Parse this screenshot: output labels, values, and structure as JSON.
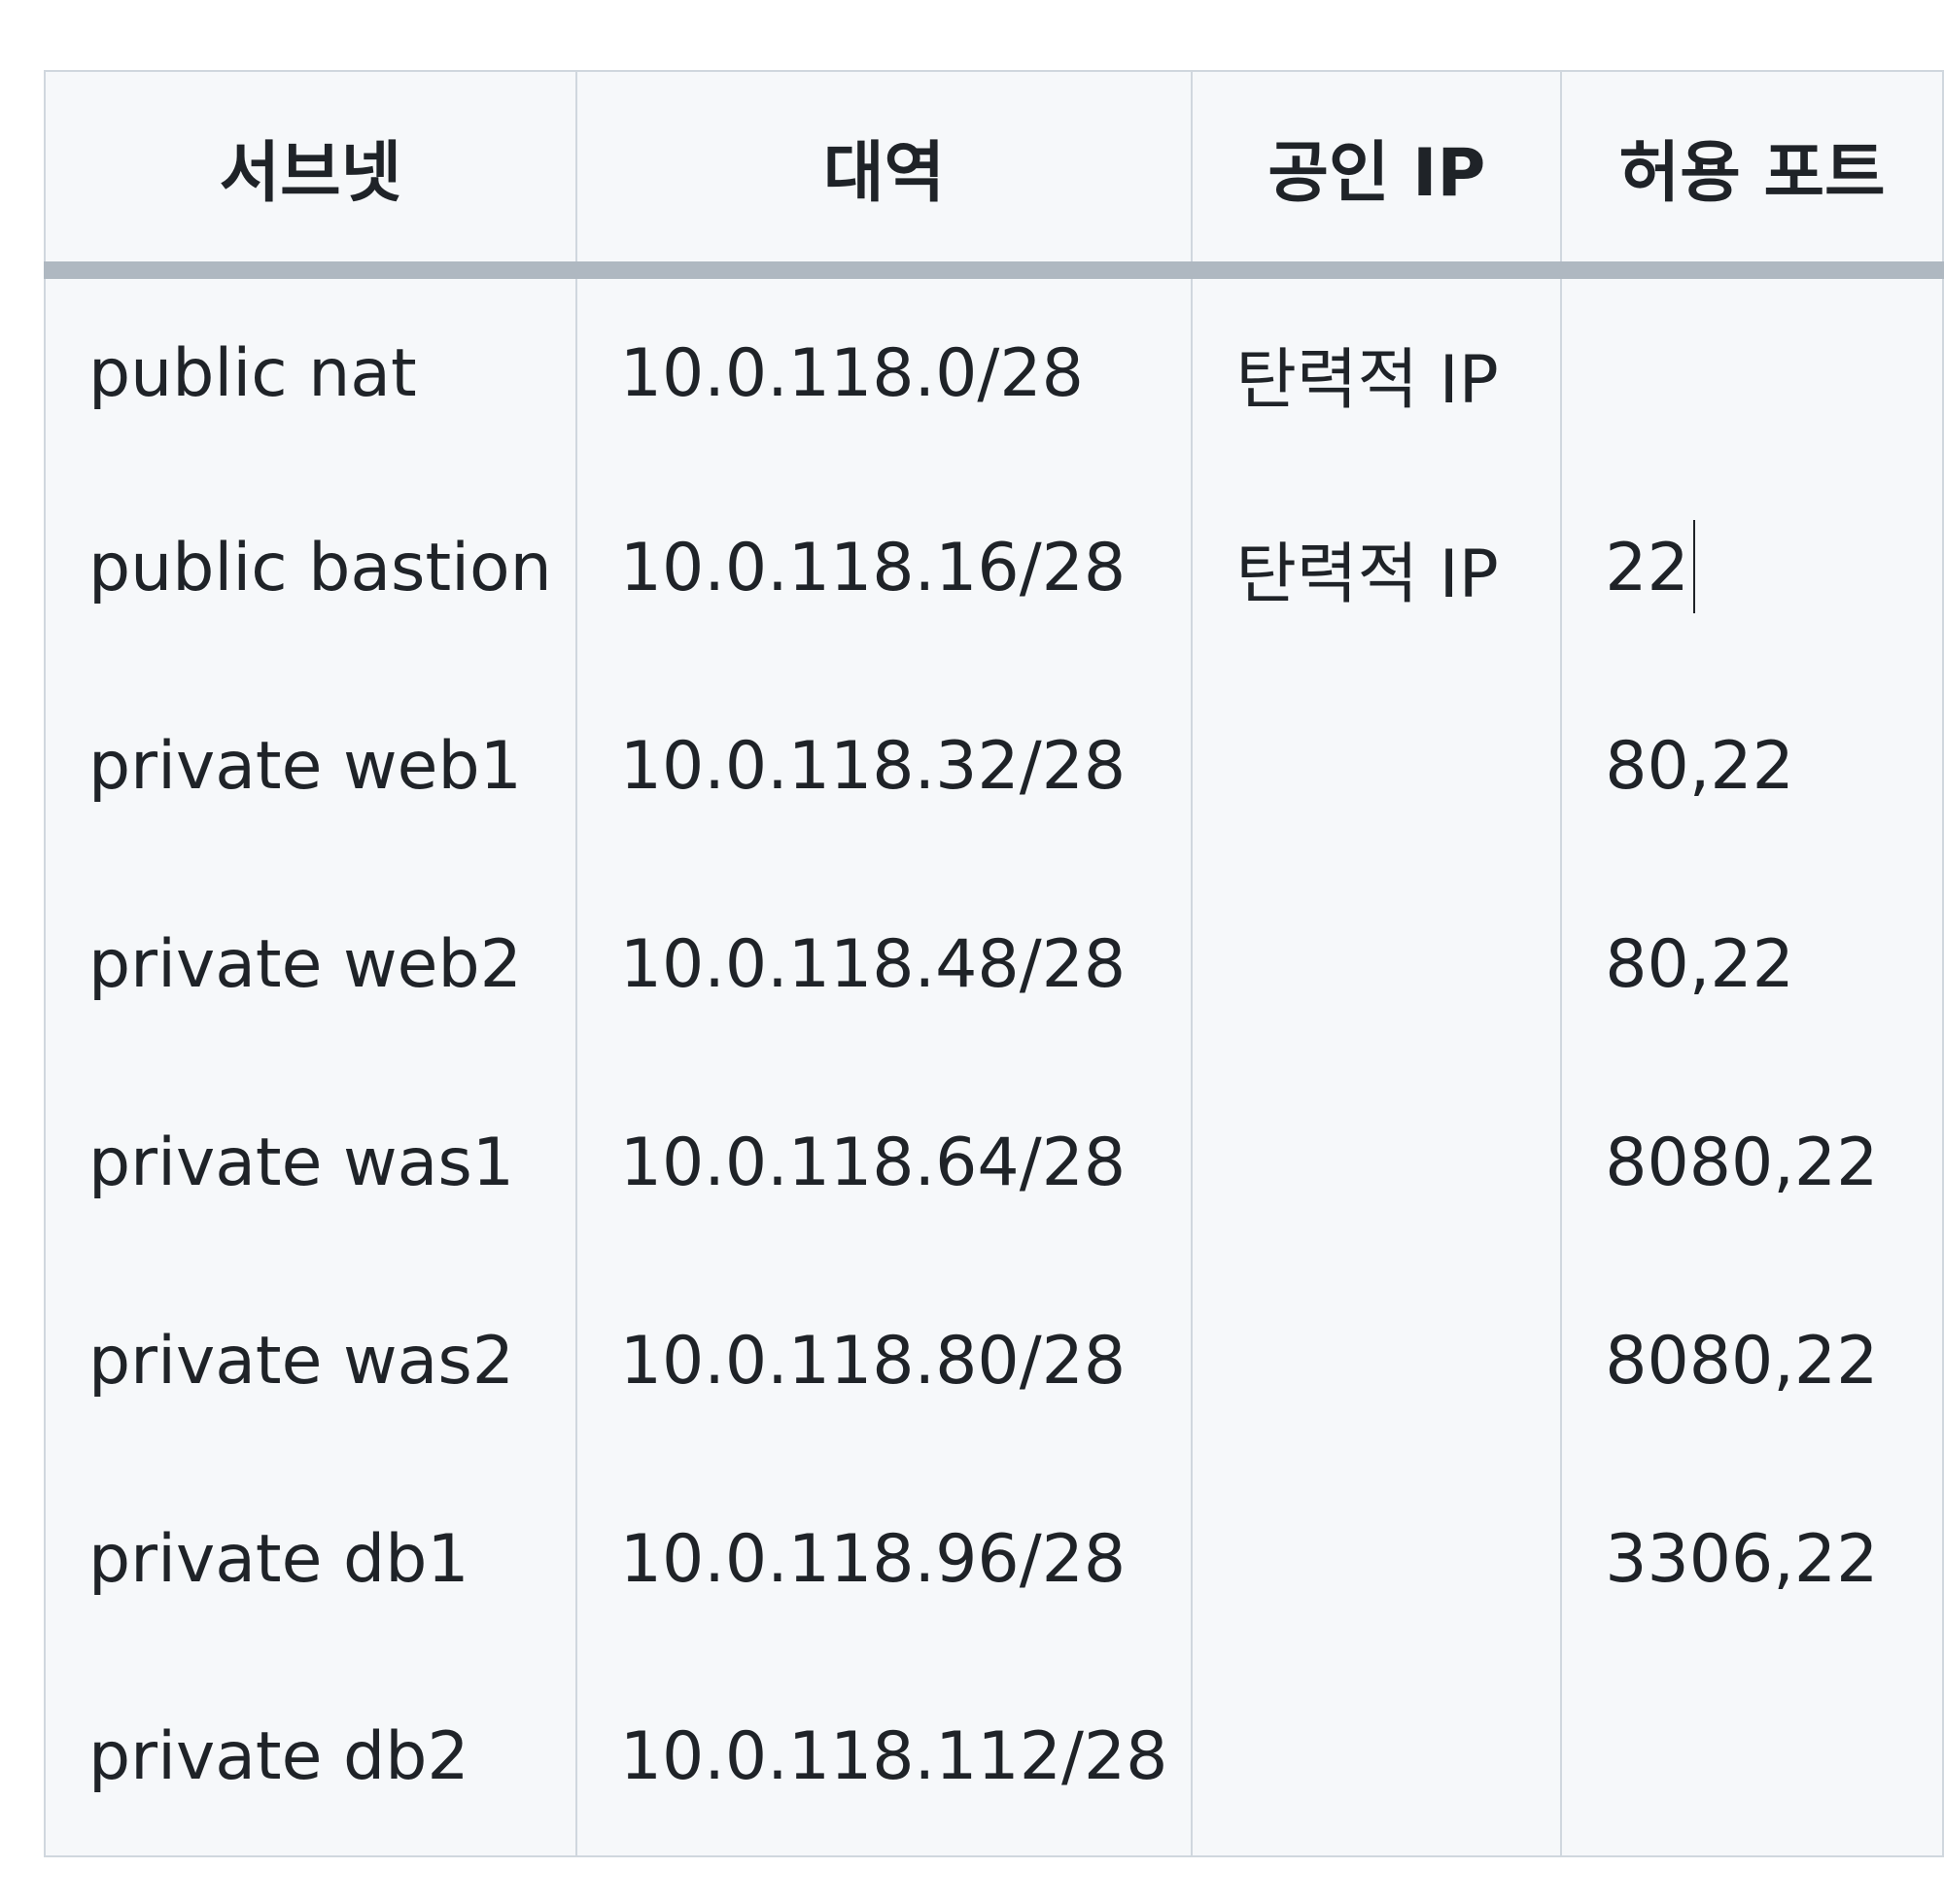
{
  "table": {
    "headers": [
      "서브넷",
      "대역",
      "공인 IP",
      "허용 포트"
    ],
    "rows": [
      [
        "public nat",
        "10.0.118.0/28",
        "탄력적 IP",
        ""
      ],
      [
        "public bastion",
        "10.0.118.16/28",
        "탄력적 IP",
        "22"
      ],
      [
        "private web1",
        "10.0.118.32/28",
        "",
        "80,22"
      ],
      [
        "private web2",
        "10.0.118.48/28",
        "",
        "80,22"
      ],
      [
        "private was1",
        "10.0.118.64/28",
        "",
        "8080,22"
      ],
      [
        "private was2",
        "10.0.118.80/28",
        "",
        "8080,22"
      ],
      [
        "private db1",
        "10.0.118.96/28",
        "",
        "3306,22"
      ],
      [
        "private db2",
        "10.0.118.112/28",
        "",
        ""
      ]
    ]
  },
  "colors": {
    "table_background": "#f6f8fa",
    "cell_border": "#d0d7de",
    "header_separator": "#afb8c1",
    "text": "#1f2328"
  }
}
